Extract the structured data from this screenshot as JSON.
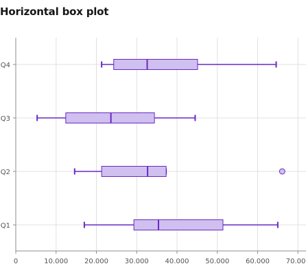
{
  "chart_data": {
    "type": "boxplot",
    "orientation": "horizontal",
    "title": "Horizontal box plot",
    "xlabel": "",
    "ylabel": "",
    "xlim": [
      0,
      72000
    ],
    "x_ticks": [
      0,
      10000,
      20000,
      30000,
      40000,
      50000,
      60000,
      70000
    ],
    "x_tick_labels": [
      "0",
      "10.000",
      "20.000",
      "30.000",
      "40.000",
      "50.000",
      "60.000",
      "70.000"
    ],
    "categories": [
      "Q4",
      "Q3",
      "Q2",
      "Q1"
    ],
    "boxes": [
      {
        "category": "Q4",
        "whisker_low": 21300,
        "q1": 24300,
        "median": 32600,
        "q3": 45100,
        "whisker_high": 64600,
        "outliers": []
      },
      {
        "category": "Q3",
        "whisker_low": 5300,
        "q1": 12400,
        "median": 23600,
        "q3": 34400,
        "whisker_high": 44500,
        "outliers": []
      },
      {
        "category": "Q2",
        "whisker_low": 14600,
        "q1": 21300,
        "median": 32700,
        "q3": 37300,
        "whisker_high": 37300,
        "outliers": [
          66100
        ]
      },
      {
        "category": "Q1",
        "whisker_low": 17000,
        "q1": 29300,
        "median": 35400,
        "q3": 51400,
        "whisker_high": 65000,
        "outliers": []
      }
    ],
    "grid": true,
    "legend": "none",
    "colors": {
      "stroke": "#6929c4",
      "fill": "#cfc0ef",
      "grid": "#e0e0e0",
      "axis": "#8d8d8d"
    }
  }
}
